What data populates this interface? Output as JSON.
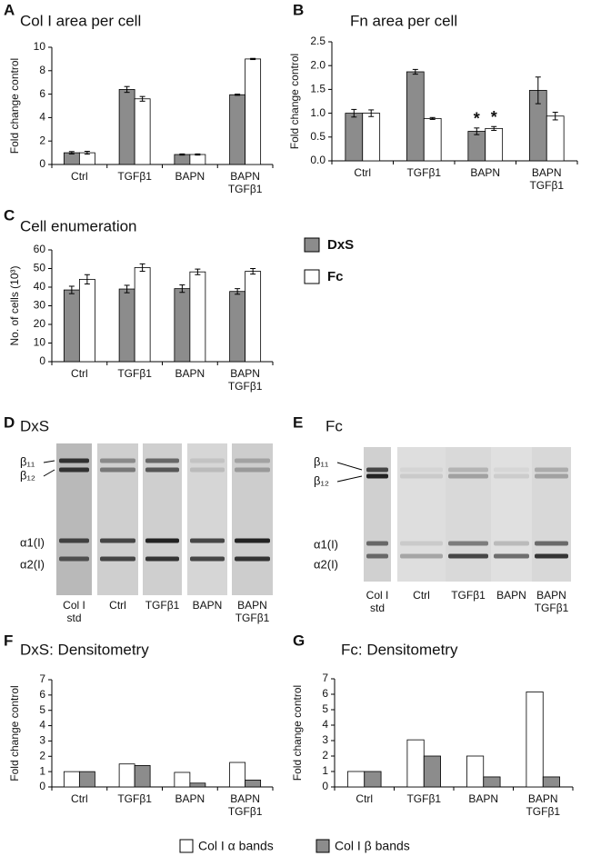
{
  "chart_data": [
    {
      "type": "bar",
      "panel": "A",
      "title": "Col I area per cell",
      "y_label": "Fold change control",
      "categories": [
        "Ctrl",
        "TGFβ1",
        "BAPN",
        "BAPN\nTGFβ1"
      ],
      "series": [
        {
          "color": "#8c8c8c",
          "values": [
            1.0,
            6.4,
            0.85,
            5.95
          ],
          "errors": [
            0.1,
            0.25,
            0.05,
            0.05
          ]
        },
        {
          "color": "#ffffff",
          "values": [
            1.0,
            5.6,
            0.85,
            9.0
          ],
          "errors": [
            0.12,
            0.2,
            0.05,
            0.05
          ]
        }
      ],
      "ylim": [
        0,
        10
      ],
      "yticks": [
        0,
        2,
        4,
        6,
        8,
        10
      ]
    },
    {
      "type": "bar",
      "panel": "B",
      "title": "Fn area per cell",
      "y_label": "Fold change control",
      "categories": [
        "Ctrl",
        "TGFβ1",
        "BAPN",
        "BAPN\nTGFβ1"
      ],
      "series": [
        {
          "color": "#8c8c8c",
          "values": [
            1.0,
            1.87,
            0.62,
            1.48
          ],
          "errors": [
            0.08,
            0.05,
            0.07,
            0.28
          ],
          "labels": [
            null,
            null,
            "*",
            null
          ]
        },
        {
          "color": "#ffffff",
          "values": [
            1.0,
            0.89,
            0.68,
            0.94
          ],
          "errors": [
            0.07,
            0.02,
            0.04,
            0.08
          ],
          "labels": [
            null,
            null,
            "*",
            null
          ]
        }
      ],
      "ylim": [
        0,
        2.5
      ],
      "yticks": [
        {
          "value": 0,
          "label": "0.0"
        },
        0.5,
        {
          "value": 1,
          "label": "1.0"
        },
        1.5,
        {
          "value": 2,
          "label": "2.0"
        },
        2.5
      ]
    },
    {
      "type": "bar",
      "panel": "C",
      "title": "Cell enumeration",
      "y_label": "No. of cells (10³)",
      "categories": [
        "Ctrl",
        "TGFβ1",
        "BAPN",
        "BAPN\nTGFβ1"
      ],
      "series": [
        {
          "color": "#8c8c8c",
          "values": [
            38.5,
            39,
            39.2,
            37.7
          ],
          "errors": [
            2,
            2,
            2,
            1.5
          ]
        },
        {
          "color": "#ffffff",
          "values": [
            44.2,
            50.5,
            48.2,
            48.5
          ],
          "errors": [
            2.5,
            2,
            1.5,
            1.5
          ]
        }
      ],
      "ylim": [
        0,
        60
      ],
      "yticks": [
        0,
        10,
        20,
        30,
        40,
        50,
        60
      ]
    },
    {
      "type": "bar",
      "panel": "F",
      "title": "DxS: Densitometry",
      "y_label": "Fold change control",
      "categories": [
        "Ctrl",
        "TGFβ1",
        "BAPN",
        "BAPN\nTGFβ1"
      ],
      "series": [
        {
          "color": "#ffffff",
          "values": [
            1.0,
            1.5,
            0.95,
            1.6
          ]
        },
        {
          "color": "#8c8c8c",
          "values": [
            1.0,
            1.4,
            0.25,
            0.45
          ]
        }
      ],
      "ylim": [
        0,
        7
      ],
      "yticks": [
        0,
        1,
        2,
        3,
        4,
        5,
        6,
        7
      ]
    },
    {
      "type": "bar",
      "panel": "G",
      "title": "Fc: Densitometry",
      "y_label": "Fold change control",
      "categories": [
        "Ctrl",
        "TGFβ1",
        "BAPN",
        "BAPN\nTGFβ1"
      ],
      "series": [
        {
          "color": "#ffffff",
          "values": [
            1.0,
            3.05,
            2.0,
            6.15
          ]
        },
        {
          "color": "#8c8c8c",
          "values": [
            1.0,
            2.0,
            0.65,
            0.65
          ]
        }
      ],
      "ylim": [
        0,
        7
      ],
      "yticks": [
        0,
        1,
        2,
        3,
        4,
        5,
        6,
        7
      ]
    }
  ],
  "legend_top": [
    {
      "name": "DxS",
      "color": "#8c8c8c"
    },
    {
      "name": "Fc",
      "color": "#ffffff"
    }
  ],
  "legend_bottom": [
    {
      "name": "Col I α bands",
      "color": "#ffffff"
    },
    {
      "name": "Col I β bands",
      "color": "#8c8c8c"
    }
  ],
  "gels": [
    {
      "panel": "D",
      "title": "DxS",
      "band_labels": [
        "β₁₁",
        "β₁₂",
        "α1(I)",
        "α2(I)"
      ],
      "lanes": [
        "Col I\nstd",
        "Ctrl",
        "TGFβ1",
        "BAPN",
        "BAPN\nTGFβ1"
      ]
    },
    {
      "panel": "E",
      "title": "Fc",
      "band_labels": [
        "β₁₁",
        "β₁₂",
        "α1(I)",
        "α2(I)"
      ],
      "lanes": [
        "Col I\nstd",
        "Ctrl",
        "TGFβ1",
        "BAPN",
        "BAPN\nTGFβ1"
      ]
    }
  ]
}
